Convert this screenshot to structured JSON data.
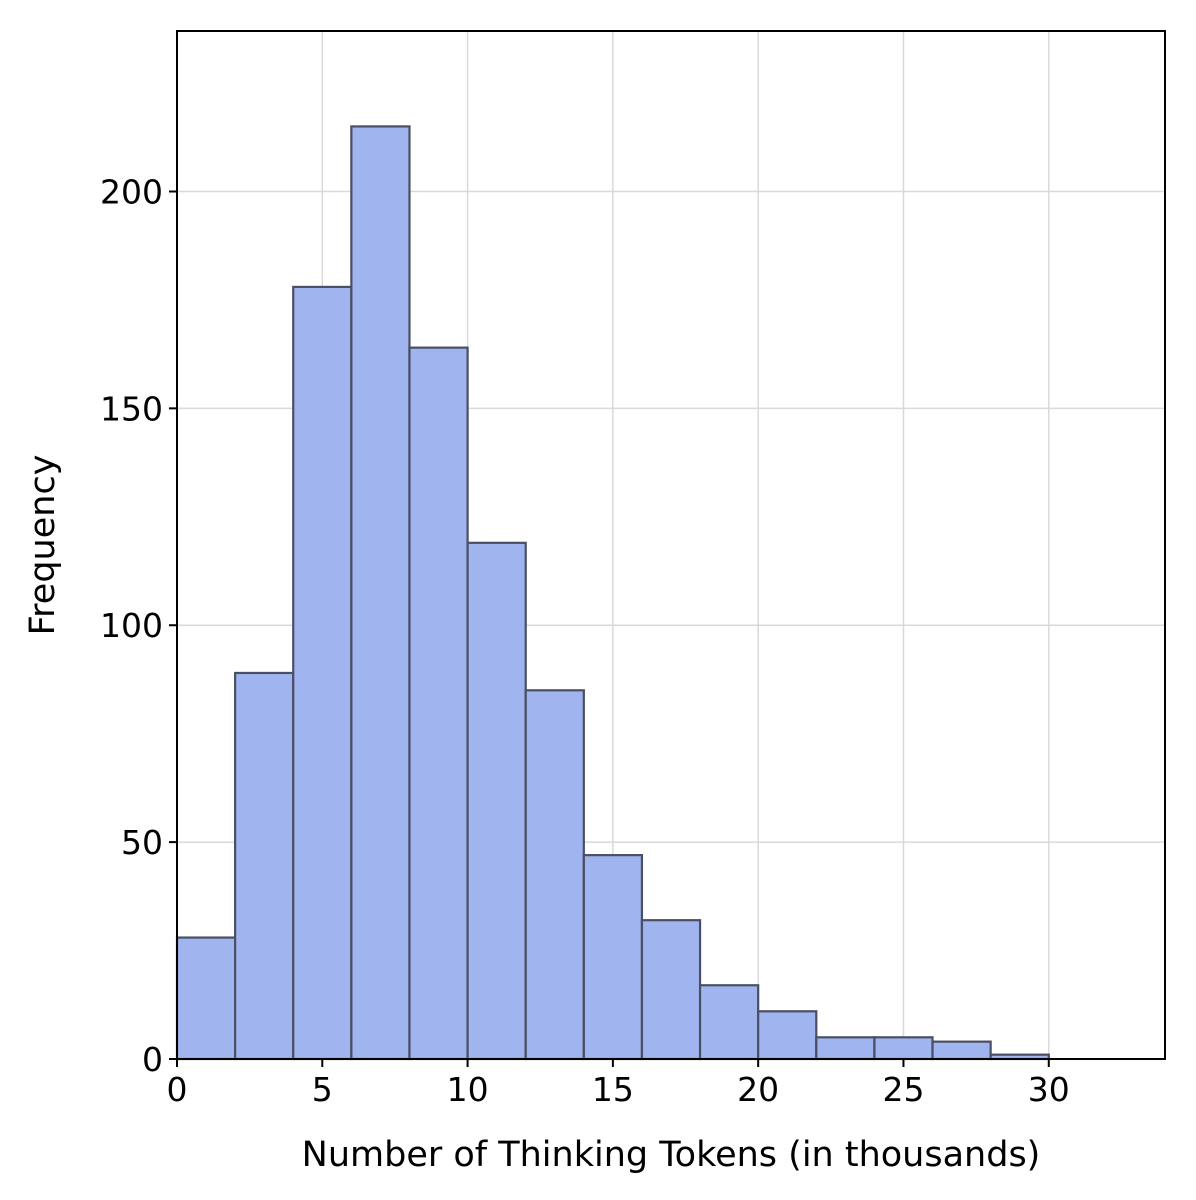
{
  "chart_data": {
    "type": "bar",
    "title": "",
    "xlabel": "Number of Thinking Tokens (in thousands)",
    "ylabel": "Frequency",
    "xlim": [
      0,
      34
    ],
    "ylim": [
      0,
      237
    ],
    "grid": true,
    "legend": "none",
    "bar_color": "#a0b4ef",
    "edge_color": "#4a4f63",
    "bin_edges": [
      0,
      2,
      4,
      6,
      8,
      10,
      12,
      14,
      16,
      18,
      20,
      22,
      24,
      26,
      28,
      30
    ],
    "values": [
      28,
      89,
      178,
      215,
      164,
      119,
      85,
      47,
      32,
      17,
      11,
      5,
      5,
      4,
      1
    ],
    "x_ticks": [
      0,
      5,
      10,
      15,
      20,
      25,
      30
    ],
    "x_tick_labels": [
      "0",
      "5",
      "10",
      "15",
      "20",
      "25",
      "30"
    ],
    "y_ticks": [
      0,
      50,
      100,
      150,
      200
    ],
    "y_tick_labels": [
      "0",
      "50",
      "100",
      "150",
      "200"
    ]
  }
}
